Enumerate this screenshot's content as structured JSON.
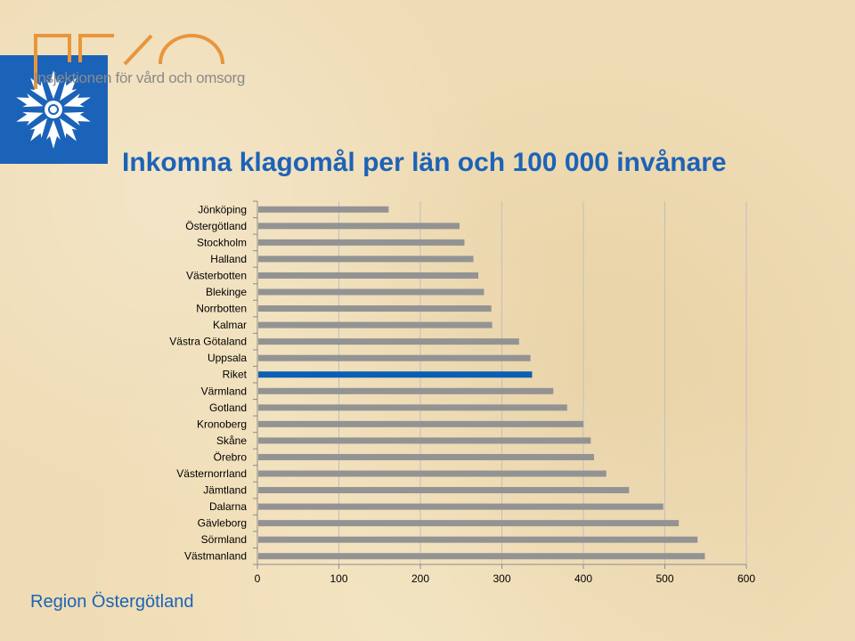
{
  "header": {
    "logo_text": "Insjektionen för vård och omsorg",
    "title": "Inkomna klagomål per län och 100 000 invånare"
  },
  "footer": {
    "org": "Region Östergötland"
  },
  "colors": {
    "bar": "#939393",
    "highlight": "#0a5fb4",
    "title": "#1c63b7",
    "logo_square": "#1b63b8",
    "logo_lines": "#e8953c"
  },
  "chart_data": {
    "type": "bar",
    "orientation": "horizontal",
    "title": "Inkomna klagomål per län och 100 000 invånare",
    "xlabel": "",
    "ylabel": "",
    "xlim": [
      0,
      600
    ],
    "xticks": [
      0,
      100,
      200,
      300,
      400,
      500,
      600
    ],
    "grid": true,
    "categories": [
      "Jönköping",
      "Östergötland",
      "Stockholm",
      "Halland",
      "Västerbotten",
      "Blekinge",
      "Norrbotten",
      "Kalmar",
      "Västra Götaland",
      "Uppsala",
      "Riket",
      "Värmland",
      "Gotland",
      "Kronoberg",
      "Skåne",
      "Örebro",
      "Västernorrland",
      "Jämtland",
      "Dalarna",
      "Gävleborg",
      "Sörmland",
      "Västmanland"
    ],
    "values": [
      160,
      247,
      253,
      264,
      270,
      277,
      286,
      287,
      320,
      334,
      336,
      362,
      379,
      399,
      408,
      412,
      427,
      455,
      497,
      516,
      539,
      548
    ],
    "highlight": "Riket"
  }
}
